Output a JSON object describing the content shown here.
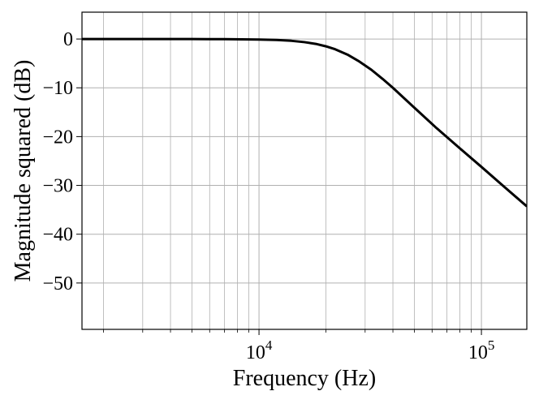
{
  "chart_data": {
    "type": "line",
    "title": "",
    "xlabel": "Frequency (Hz)",
    "ylabel": "Magnitude squared (dB)",
    "xscale": "log",
    "xlim": [
      1600,
      160000
    ],
    "ylim": [
      -59.5,
      5.5
    ],
    "grid": true,
    "grid_minor_x": true,
    "x_ticks": [
      {
        "value": 10000,
        "base": "10",
        "exp": "4"
      },
      {
        "value": 100000,
        "base": "10",
        "exp": "5"
      }
    ],
    "y_ticks": [
      {
        "value": 0,
        "label": "0"
      },
      {
        "value": -10,
        "label": "−10"
      },
      {
        "value": -20,
        "label": "−20"
      },
      {
        "value": -30,
        "label": "−30"
      },
      {
        "value": -40,
        "label": "−40"
      },
      {
        "value": -50,
        "label": "−50"
      }
    ],
    "series": [
      {
        "color": "#000000",
        "x": [
          1600,
          2000,
          3000,
          5000,
          7000,
          10000,
          12000,
          14000,
          16000,
          18000,
          20000,
          22000,
          25000,
          28000,
          32000,
          36000,
          40000,
          50000,
          63000,
          80000,
          100000,
          126000,
          160000
        ],
        "y": [
          0,
          0,
          0,
          -0.01,
          -0.03,
          -0.1,
          -0.2,
          -0.37,
          -0.64,
          -1.0,
          -1.5,
          -2.1,
          -3.2,
          -4.5,
          -6.3,
          -8.2,
          -10.0,
          -14.1,
          -18.3,
          -22.4,
          -26.2,
          -30.2,
          -34.3
        ]
      }
    ]
  }
}
